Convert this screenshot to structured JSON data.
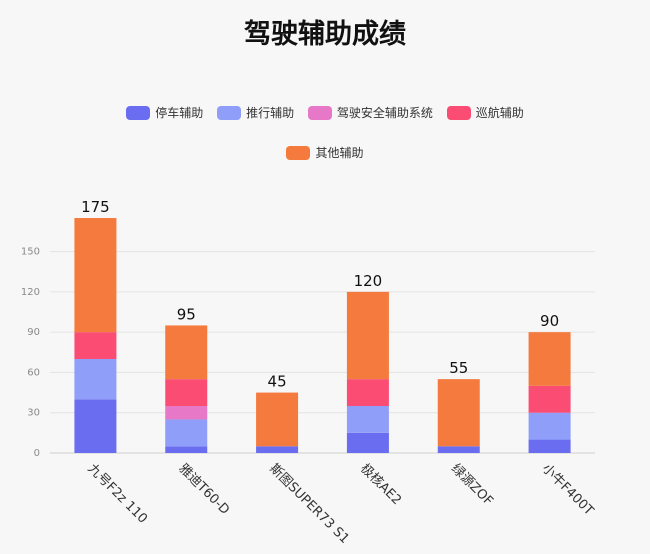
{
  "chart_data": {
    "type": "bar",
    "stacked": true,
    "title": "驾驶辅助成绩",
    "categories": [
      "九号F2z 110",
      "雅迪T60-D",
      "斯图SUPER73 S1",
      "极核AE2",
      "绿源ZOF",
      "小牛F400T"
    ],
    "series": [
      {
        "name": "停车辅助",
        "color": "#6a6df0",
        "values": [
          40,
          5,
          5,
          15,
          5,
          10
        ]
      },
      {
        "name": "推行辅助",
        "color": "#8f9ef8",
        "values": [
          30,
          20,
          0,
          20,
          0,
          20
        ]
      },
      {
        "name": "驾驶安全辅助系统",
        "color": "#e777c7",
        "values": [
          0,
          10,
          0,
          0,
          0,
          0
        ]
      },
      {
        "name": "巡航辅助",
        "color": "#fb4d74",
        "values": [
          20,
          20,
          0,
          20,
          0,
          20
        ]
      },
      {
        "name": "其他辅助",
        "color": "#f47a3e",
        "values": [
          85,
          40,
          40,
          65,
          50,
          40
        ]
      }
    ],
    "totals": [
      175,
      95,
      45,
      120,
      55,
      90
    ],
    "ylim": [
      0,
      175
    ],
    "yticks": [
      0,
      30,
      60,
      90,
      120,
      150
    ],
    "grid": true,
    "legend_position": "top"
  }
}
